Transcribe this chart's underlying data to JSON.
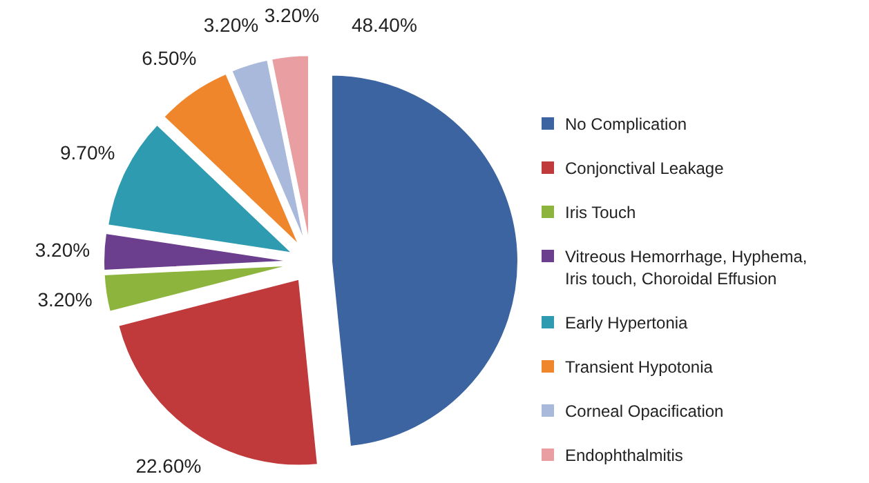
{
  "chart_data": {
    "type": "pie",
    "categories": [
      "No Complication",
      "Conjonctival Leakage",
      "Iris Touch",
      "Vitreous Hemorrhage, Hyphema, Iris touch, Choroidal Effusion",
      "Early Hypertonia",
      "Transient Hypotonia",
      "Corneal Opacification",
      "Endophthalmitis"
    ],
    "values": [
      48.4,
      22.6,
      3.2,
      3.2,
      9.7,
      6.5,
      3.2,
      3.2
    ],
    "value_labels": [
      "48.40%",
      "22.60%",
      "3.20%",
      "3.20%",
      "9.70%",
      "6.50%",
      "3.20%",
      "3.20%"
    ],
    "colors": [
      "#3b64a1",
      "#c0393b",
      "#8db53e",
      "#6b3f8e",
      "#2f9bb1",
      "#f0862b",
      "#a8b9dc",
      "#e99fa1"
    ],
    "legend": "right"
  }
}
